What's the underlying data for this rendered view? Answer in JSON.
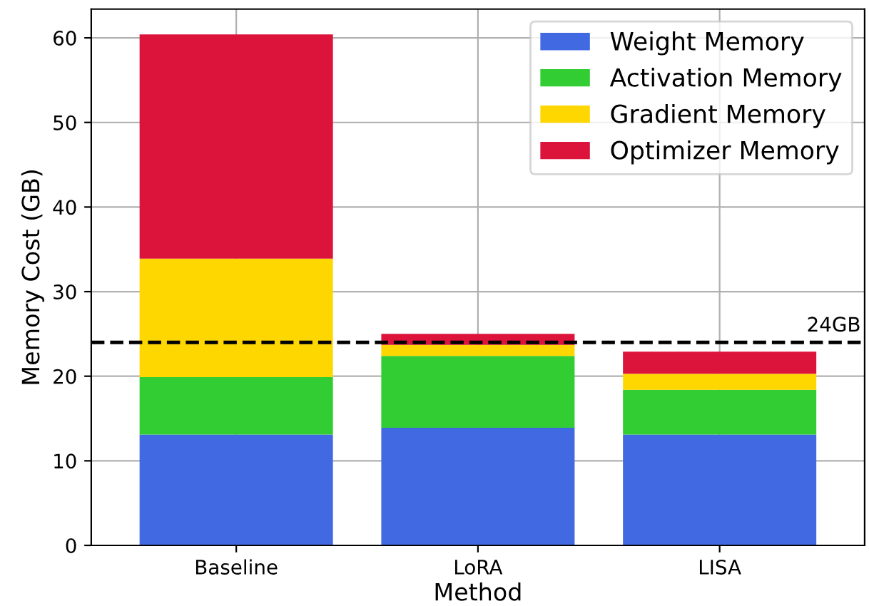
{
  "chart_data": {
    "type": "bar",
    "stacked": true,
    "xlabel": "Method",
    "ylabel": "Memory Cost (GB)",
    "categories": [
      "Baseline",
      "LoRA",
      "LISA"
    ],
    "series": [
      {
        "name": "Weight Memory",
        "color": "#4169e1",
        "values": [
          13.1,
          13.9,
          13.1
        ]
      },
      {
        "name": "Activation Memory",
        "color": "#32cd32",
        "values": [
          6.8,
          8.5,
          5.3
        ]
      },
      {
        "name": "Gradient Memory",
        "color": "#ffd700",
        "values": [
          14.0,
          1.3,
          1.9
        ]
      },
      {
        "name": "Optimizer Memory",
        "color": "#dc143c",
        "values": [
          26.5,
          1.3,
          2.6
        ]
      }
    ],
    "ylim": [
      0,
      63.4
    ],
    "yticks": [
      0,
      10,
      20,
      30,
      40,
      50,
      60
    ],
    "ref_lines": [
      {
        "axis": "y",
        "value": 24,
        "label": "24GB",
        "color": "#000000",
        "line_style": "dashed"
      }
    ],
    "grid": true,
    "legend": "top right"
  }
}
